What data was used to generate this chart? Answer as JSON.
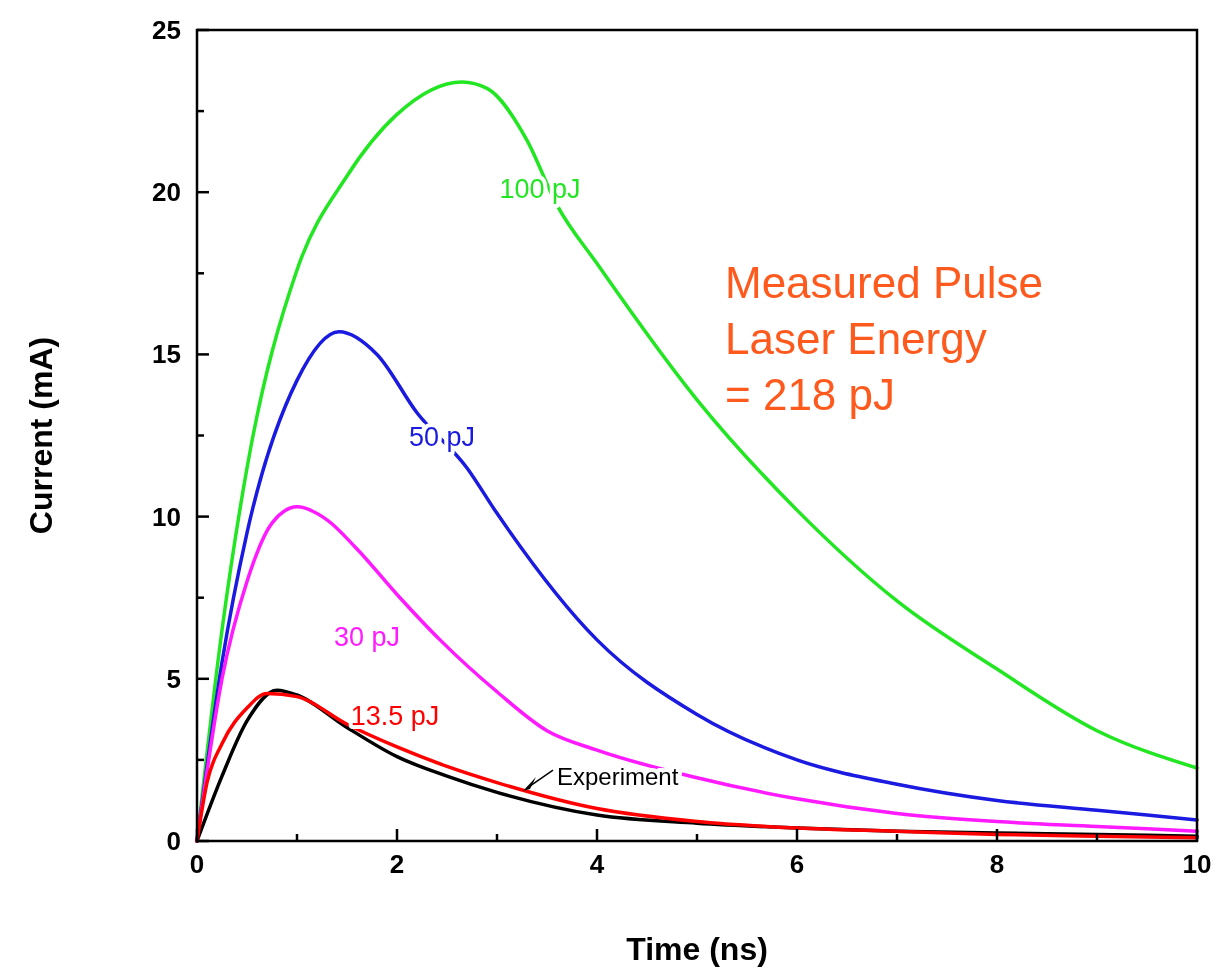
{
  "chart_data": {
    "type": "line",
    "xlabel": "Time (ns)",
    "ylabel": "Current (mA)",
    "xlim": [
      0,
      10
    ],
    "ylim": [
      0,
      25
    ],
    "xticks": [
      0,
      {
        "value": 1,
        "label": null
      },
      2,
      {
        "value": 3,
        "label": null
      },
      4,
      {
        "value": 5,
        "label": null
      },
      6,
      {
        "value": 7,
        "label": null
      },
      8,
      {
        "value": 9,
        "label": null
      },
      10
    ],
    "yticks": [
      0,
      {
        "value": 2.5,
        "label": null
      },
      5,
      {
        "value": 7.5,
        "label": null
      },
      10,
      {
        "value": 12.5,
        "label": null
      },
      15,
      {
        "value": 17.5,
        "label": null
      },
      20,
      {
        "value": 22.5,
        "label": null
      },
      25
    ],
    "grid": false,
    "marker": "none",
    "line_style": "solid",
    "annotations": [
      "Measured Pulse\nLaser Energy\n= 218 pJ"
    ],
    "series": [
      {
        "name": "100 pJ",
        "color": "#22e622",
        "x": [
          0,
          0.25,
          0.5,
          1,
          1.5,
          2,
          2.65,
          2.9,
          3.3,
          3.6,
          4,
          5,
          6,
          7,
          8,
          9,
          10
        ],
        "values": [
          0,
          6.5,
          11.5,
          17.6,
          20.5,
          22.4,
          23.4,
          23.2,
          21.6,
          19.6,
          17.8,
          13.6,
          10.2,
          7.4,
          5.3,
          3.4,
          2.25
        ]
      },
      {
        "name": "50 pJ",
        "color": "#1a1ae0",
        "x": [
          0,
          0.25,
          0.5,
          1,
          1.42,
          1.8,
          2.2,
          2.7,
          3,
          4,
          5,
          6,
          7,
          8,
          9,
          10
        ],
        "values": [
          0,
          5.5,
          9.5,
          14.2,
          15.7,
          15,
          13.2,
          11.5,
          10.1,
          6.2,
          3.9,
          2.5,
          1.75,
          1.25,
          0.95,
          0.65
        ]
      },
      {
        "name": "30 pJ",
        "color": "#ff1aff",
        "x": [
          0,
          0.25,
          0.5,
          0.75,
          1,
          1.3,
          1.6,
          2,
          2.43,
          3,
          3.5,
          4,
          5,
          6,
          7,
          8,
          9,
          10
        ],
        "values": [
          0,
          5,
          8,
          9.8,
          10.3,
          9.9,
          9,
          7.6,
          6.2,
          4.6,
          3.4,
          2.8,
          1.95,
          1.3,
          0.85,
          0.6,
          0.45,
          0.3
        ]
      },
      {
        "name": "Experiment",
        "color": "#000000",
        "x": [
          0,
          0.25,
          0.5,
          0.8,
          1,
          1.5,
          2,
          2.5,
          3,
          4,
          5,
          6,
          7,
          8,
          9,
          10
        ],
        "values": [
          0,
          2,
          3.7,
          4.65,
          4.5,
          3.5,
          2.6,
          2,
          1.5,
          0.8,
          0.55,
          0.4,
          0.3,
          0.25,
          0.2,
          0.15
        ]
      },
      {
        "name": "13.5 pJ",
        "color": "#ff0000",
        "x": [
          0,
          0.1,
          0.25,
          0.5,
          0.7,
          1,
          1.5,
          2,
          2.5,
          3,
          4,
          5,
          6,
          7,
          8,
          9,
          10
        ],
        "values": [
          0,
          1.8,
          3,
          4.1,
          4.55,
          4.45,
          3.6,
          2.9,
          2.3,
          1.8,
          1,
          0.6,
          0.4,
          0.3,
          0.2,
          0.15,
          0.1
        ]
      }
    ]
  }
}
